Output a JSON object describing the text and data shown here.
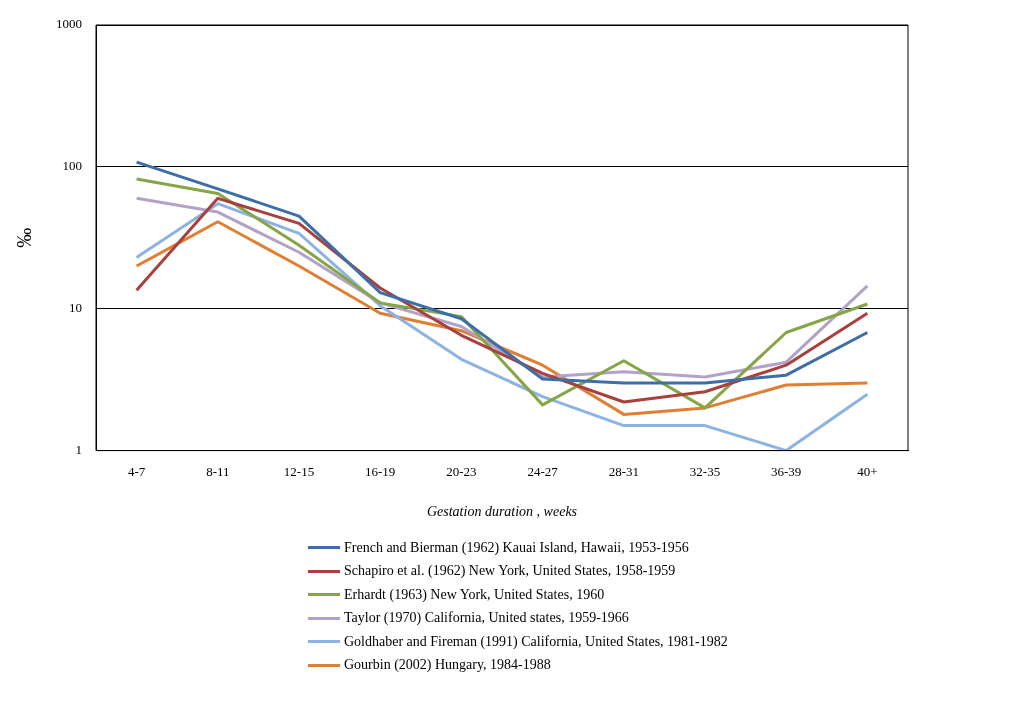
{
  "chart_data": {
    "type": "line",
    "xlabel": "Gestation duration , weeks",
    "ylabel": "‰",
    "categories": [
      "4-7",
      "8-11",
      "12-15",
      "16-19",
      "20-23",
      "24-27",
      "28-31",
      "32-35",
      "36-39",
      "40+"
    ],
    "series": [
      {
        "name": "French and Bierman (1962) Kauai Island, Hawaii, 1953-1956",
        "color": "#3e6ea8",
        "values": [
          108,
          70,
          45,
          13,
          8.5,
          3.2,
          3.0,
          3.0,
          3.4,
          6.8
        ]
      },
      {
        "name": "Schapiro et al. (1962) New York, United States, 1958-1959",
        "color": "#a8403c",
        "values": [
          13.5,
          60,
          40,
          14,
          6.5,
          3.5,
          2.2,
          2.6,
          4.0,
          9.3
        ]
      },
      {
        "name": "Erhardt (1963) New York, United States, 1960",
        "color": "#86a544",
        "values": [
          82,
          65,
          28,
          11,
          8.8,
          2.1,
          4.3,
          2.0,
          6.8,
          10.8
        ]
      },
      {
        "name": "Taylor (1970) California, United states, 1959-1966",
        "color": "#b3a2c8",
        "values": [
          60,
          48,
          25,
          11,
          7.5,
          3.3,
          3.6,
          3.3,
          4.2,
          14.5
        ]
      },
      {
        "name": "Goldhaber and Fireman (1991) California, United States, 1981-1982",
        "color": "#8db3e2",
        "values": [
          23,
          55,
          34,
          10.5,
          4.4,
          2.4,
          1.5,
          1.5,
          1.0,
          2.5
        ]
      },
      {
        "name": "Gourbin (2002) Hungary, 1984-1988",
        "color": "#e07f34",
        "values": [
          20,
          41,
          20,
          9.3,
          7.0,
          4.0,
          1.8,
          2.0,
          2.9,
          3.0
        ]
      }
    ],
    "log": "y",
    "ylim": [
      1,
      1000
    ],
    "yticks": [
      1,
      10,
      100,
      1000
    ],
    "grid": "y",
    "legend": "bottom",
    "marker": "none",
    "line_style": "solid"
  }
}
